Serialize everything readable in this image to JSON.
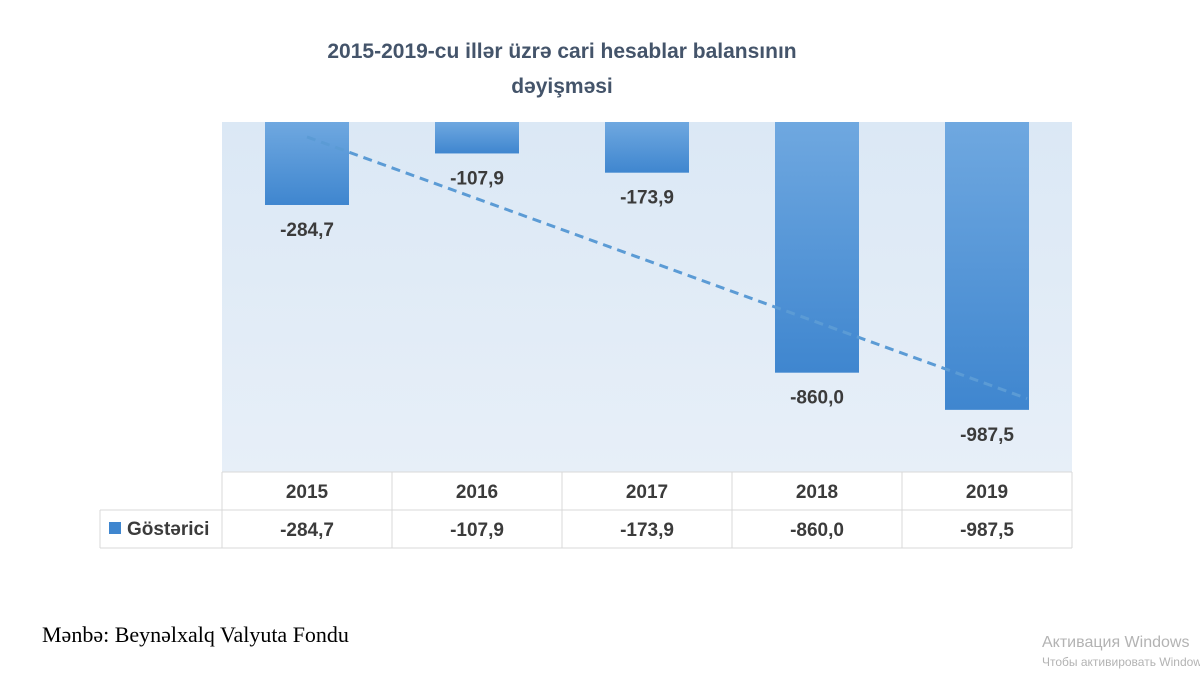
{
  "chart_data": {
    "type": "bar",
    "title_line1": "2015-2019-cu illər üzrə cari hesablar balansının",
    "title_line2": "dəyişməsi",
    "categories": [
      "2015",
      "2016",
      "2017",
      "2018",
      "2019"
    ],
    "series": [
      {
        "name": "Göstərici",
        "values": [
          -284.7,
          -107.9,
          -173.9,
          -860.0,
          -987.5
        ],
        "labels": [
          "-284,7",
          "-107,9",
          "-173,9",
          "-860,0",
          "-987,5"
        ]
      }
    ],
    "trendline": {
      "type": "linear",
      "style": "dashed",
      "color": "#5b9bd5"
    },
    "data_table": true,
    "ylim": [
      -1200,
      0
    ],
    "grid": false,
    "xlabel": "",
    "ylabel": "",
    "colors": {
      "bar_light": "#6fa8e0",
      "bar_dark": "#3f86cf",
      "plot_bg_top": "#dbe8f5",
      "plot_bg_bottom": "#e7eff8",
      "label_text": "#3b3b3b",
      "title_text": "#44546a",
      "table_border": "#d9d9d9"
    }
  },
  "source": "Mənbə: Beynəlxalq Valyuta Fondu",
  "watermark": {
    "line1": "Активация Windows",
    "line2": "Чтобы активировать Windows"
  }
}
